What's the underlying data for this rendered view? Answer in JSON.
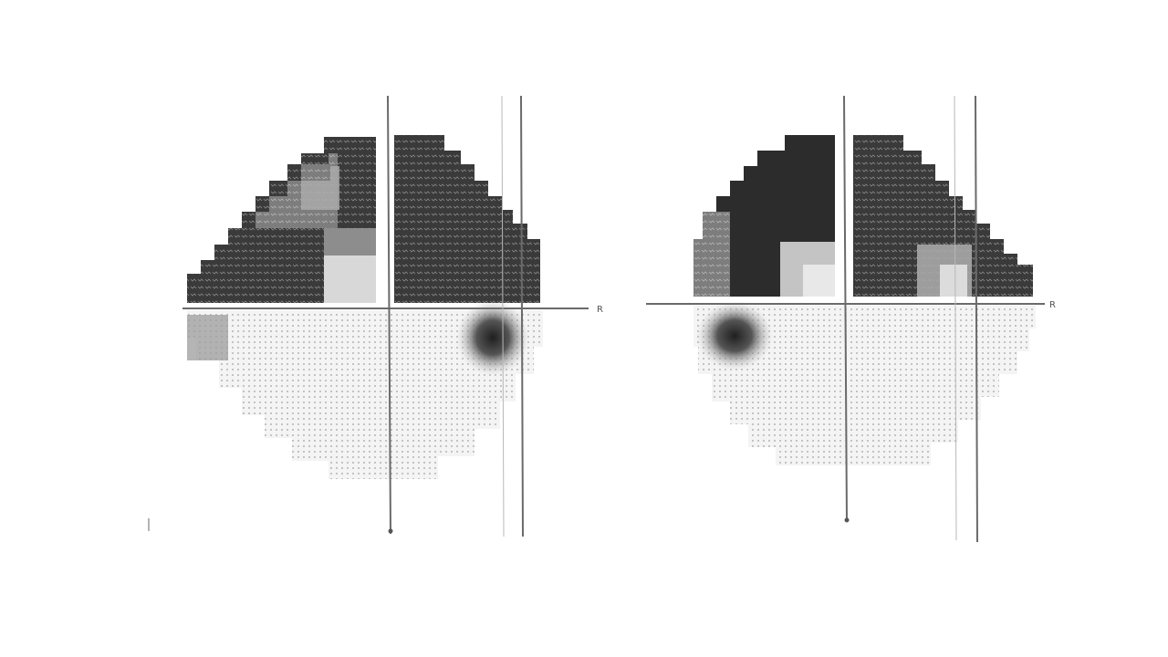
{
  "figure": {
    "description_free": true,
    "fields": [
      {
        "id": "left-eye-field",
        "axis_letter": "R",
        "palette": {
          "dark": "#2e2e2e",
          "mid": "#7a7a7a",
          "light": "#c9c9c9",
          "dot": "#9a9a9a"
        },
        "regions": {
          "superior_nasal": "dark",
          "superior_temporal_upper": "mid",
          "superior_temporal_lower": "dark",
          "paracentral_spot": "dark",
          "inferior": "light"
        }
      },
      {
        "id": "right-eye-field",
        "axis_letter": "R",
        "palette": {
          "dark": "#2e2e2e",
          "mid": "#7a7a7a",
          "light": "#c9c9c9",
          "dot": "#9a9a9a"
        },
        "regions": {
          "superior_nasal": "dark",
          "superior_temporal": "dark",
          "paracentral_spot": "dark",
          "inferior": "light"
        }
      }
    ]
  }
}
